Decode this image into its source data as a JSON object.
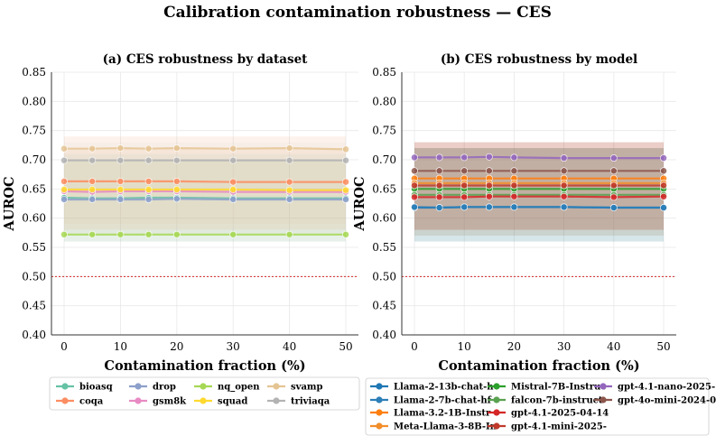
{
  "figure": {
    "title": "Calibration contamination robustness — CES"
  },
  "chart_data": [
    {
      "type": "line",
      "title": "(a) CES robustness by dataset",
      "xlabel": "Contamination fraction (%)",
      "ylabel": "AUROC",
      "x": [
        0,
        5,
        10,
        15,
        20,
        30,
        40,
        50
      ],
      "xticks": [
        0,
        10,
        20,
        30,
        40,
        50
      ],
      "ylim": [
        0.4,
        0.85
      ],
      "yticks": [
        "0.40",
        "0.45",
        "0.50",
        "0.55",
        "0.60",
        "0.65",
        "0.70",
        "0.75",
        "0.80",
        "0.85"
      ],
      "reference_line": 0.5,
      "grid": true,
      "legend_placement": "below",
      "legend_columns": 4,
      "series": [
        {
          "name": "bioasq",
          "color": "#66c2a5",
          "values": [
            0.635,
            0.634,
            0.634,
            0.635,
            0.635,
            0.634,
            0.634,
            0.634
          ],
          "band": [
            0.56,
            0.71
          ]
        },
        {
          "name": "coqa",
          "color": "#fc8d62",
          "values": [
            0.663,
            0.663,
            0.663,
            0.663,
            0.663,
            0.662,
            0.662,
            0.662
          ],
          "band": [
            0.59,
            0.74
          ]
        },
        {
          "name": "drop",
          "color": "#8da0cb",
          "values": [
            0.632,
            0.632,
            0.632,
            0.632,
            0.633,
            0.632,
            0.632,
            0.632
          ],
          "band": [
            0.56,
            0.7
          ]
        },
        {
          "name": "gsm8k",
          "color": "#e78ac3",
          "values": [
            0.646,
            0.645,
            0.646,
            0.646,
            0.646,
            0.645,
            0.645,
            0.645
          ],
          "band": [
            0.58,
            0.72
          ]
        },
        {
          "name": "nq_open",
          "color": "#a6d854",
          "values": [
            0.572,
            0.572,
            0.572,
            0.572,
            0.572,
            0.572,
            0.572,
            0.572
          ],
          "band": [
            0.56,
            0.7
          ]
        },
        {
          "name": "squad",
          "color": "#ffd92f",
          "values": [
            0.649,
            0.649,
            0.649,
            0.649,
            0.649,
            0.649,
            0.648,
            0.648
          ],
          "band": [
            0.58,
            0.72
          ]
        },
        {
          "name": "svamp",
          "color": "#e5c494",
          "values": [
            0.719,
            0.719,
            0.72,
            0.719,
            0.72,
            0.719,
            0.72,
            0.718
          ],
          "band": [
            0.57,
            0.74
          ]
        },
        {
          "name": "triviaqa",
          "color": "#b3b3b3",
          "values": [
            0.699,
            0.699,
            0.699,
            0.699,
            0.699,
            0.699,
            0.699,
            0.699
          ],
          "band": [
            0.57,
            0.73
          ]
        }
      ]
    },
    {
      "type": "line",
      "title": "(b) CES robustness by model",
      "xlabel": "Contamination fraction (%)",
      "ylabel": "AUROC",
      "x": [
        0,
        5,
        10,
        15,
        20,
        30,
        40,
        50
      ],
      "xticks": [
        0,
        10,
        20,
        30,
        40,
        50
      ],
      "ylim": [
        0.4,
        0.85
      ],
      "yticks": [
        "0.40",
        "0.45",
        "0.50",
        "0.55",
        "0.60",
        "0.65",
        "0.70",
        "0.75",
        "0.80",
        "0.85"
      ],
      "reference_line": 0.5,
      "grid": true,
      "legend_placement": "below",
      "legend_columns": 3,
      "series": [
        {
          "name": "Llama-2-13b-chat-h",
          "color": "#1f77b4",
          "values": [
            0.618,
            0.618,
            0.619,
            0.619,
            0.619,
            0.619,
            0.618,
            0.618
          ],
          "band": [
            0.56,
            0.72
          ]
        },
        {
          "name": "Llama-2-7b-chat-hf",
          "color": "#2c7fb8",
          "values": [
            0.619,
            0.618,
            0.619,
            0.619,
            0.619,
            0.619,
            0.618,
            0.618
          ],
          "band": [
            0.56,
            0.72
          ]
        },
        {
          "name": "Llama-3.2-1B-Instr",
          "color": "#ff7f0e",
          "values": [
            0.668,
            0.668,
            0.668,
            0.668,
            0.668,
            0.668,
            0.668,
            0.668
          ],
          "band": [
            0.58,
            0.73
          ]
        },
        {
          "name": "Meta-Llama-3-8B-In",
          "color": "#f28e2b",
          "values": [
            0.66,
            0.66,
            0.66,
            0.66,
            0.66,
            0.66,
            0.66,
            0.66
          ],
          "band": [
            0.58,
            0.73
          ]
        },
        {
          "name": "Mistral-7B-Instruc",
          "color": "#2ca02c",
          "values": [
            0.65,
            0.65,
            0.65,
            0.65,
            0.65,
            0.65,
            0.65,
            0.65
          ],
          "band": [
            0.57,
            0.72
          ]
        },
        {
          "name": "falcon-7b-instruct",
          "color": "#59a14f",
          "values": [
            0.64,
            0.64,
            0.64,
            0.64,
            0.64,
            0.64,
            0.64,
            0.64
          ],
          "band": [
            0.56,
            0.72
          ]
        },
        {
          "name": "gpt-4.1-2025-04-14",
          "color": "#d62728",
          "values": [
            0.636,
            0.636,
            0.636,
            0.637,
            0.637,
            0.637,
            0.636,
            0.637
          ],
          "band": [
            0.57,
            0.72
          ]
        },
        {
          "name": "gpt-4.1-mini-2025-",
          "color": "#c0392b",
          "values": [
            0.656,
            0.656,
            0.656,
            0.656,
            0.656,
            0.656,
            0.656,
            0.656
          ],
          "band": [
            0.58,
            0.73
          ]
        },
        {
          "name": "gpt-4.1-nano-2025-",
          "color": "#9467bd",
          "values": [
            0.704,
            0.704,
            0.704,
            0.705,
            0.704,
            0.703,
            0.703,
            0.703
          ],
          "band": [
            0.58,
            0.73
          ]
        },
        {
          "name": "gpt-4o-mini-2024-0",
          "color": "#8c564b",
          "values": [
            0.681,
            0.681,
            0.681,
            0.681,
            0.681,
            0.681,
            0.681,
            0.681
          ],
          "band": [
            0.58,
            0.73
          ]
        }
      ]
    }
  ]
}
